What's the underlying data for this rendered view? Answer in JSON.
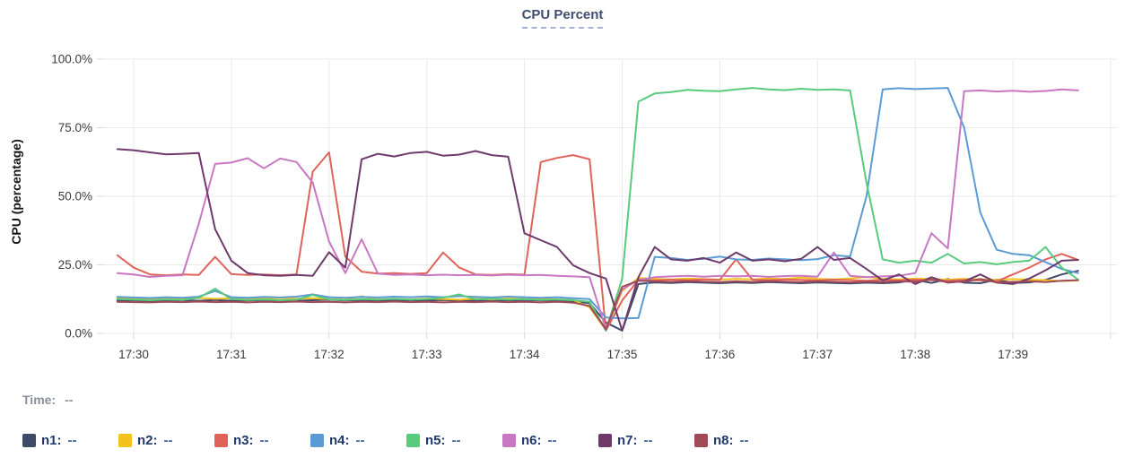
{
  "tooltip": {
    "time_label": "Time:",
    "time_value": "--"
  },
  "legend": {
    "items": [
      {
        "label": "n1:",
        "value": "--"
      },
      {
        "label": "n2:",
        "value": "--"
      },
      {
        "label": "n3:",
        "value": "--"
      },
      {
        "label": "n4:",
        "value": "--"
      },
      {
        "label": "n5:",
        "value": "--"
      },
      {
        "label": "n6:",
        "value": "--"
      },
      {
        "label": "n7:",
        "value": "--"
      },
      {
        "label": "n8:",
        "value": "--"
      }
    ]
  },
  "chart_data": {
    "type": "line",
    "title": "CPU Percent",
    "ylabel": "CPU (percentage)",
    "ylim": [
      0,
      100
    ],
    "grid": true,
    "legend_position": "bottom",
    "x_unit": "seconds_after_17:30:00",
    "x": [
      -10,
      0,
      10,
      20,
      30,
      40,
      50,
      60,
      70,
      80,
      90,
      100,
      110,
      120,
      130,
      140,
      150,
      160,
      170,
      180,
      190,
      200,
      210,
      220,
      230,
      240,
      250,
      260,
      270,
      280,
      290,
      300,
      310,
      320,
      330,
      340,
      350,
      360,
      370,
      380,
      390,
      400,
      410,
      420,
      430,
      440,
      450,
      460,
      470,
      480,
      490,
      500,
      510,
      520,
      530,
      540,
      550,
      560,
      570,
      580
    ],
    "xticks": [
      {
        "t": 0,
        "label": "17:30"
      },
      {
        "t": 60,
        "label": "17:31"
      },
      {
        "t": 120,
        "label": "17:32"
      },
      {
        "t": 180,
        "label": "17:33"
      },
      {
        "t": 240,
        "label": "17:34"
      },
      {
        "t": 300,
        "label": "17:35"
      },
      {
        "t": 360,
        "label": "17:36"
      },
      {
        "t": 420,
        "label": "17:37"
      },
      {
        "t": 480,
        "label": "17:38"
      },
      {
        "t": 540,
        "label": "17:39"
      },
      {
        "t": 600,
        "label": ""
      }
    ],
    "yticks": [
      {
        "v": 0,
        "label": "0.0%"
      },
      {
        "v": 25,
        "label": "25.0%"
      },
      {
        "v": 50,
        "label": "50.0%"
      },
      {
        "v": 75,
        "label": "75.0%"
      },
      {
        "v": 100,
        "label": "100.0%"
      }
    ],
    "series": [
      {
        "name": "n1",
        "color": "#3e4a68",
        "values": [
          12.0,
          12.0,
          11.8,
          12.0,
          12.1,
          11.9,
          12.2,
          11.9,
          12.0,
          12.2,
          12.0,
          11.9,
          12.1,
          12.3,
          12.0,
          12.2,
          12.0,
          11.9,
          12.1,
          12.0,
          12.2,
          12.0,
          11.9,
          12.1,
          12.0,
          12.2,
          12.0,
          11.9,
          11.7,
          11.0,
          4.0,
          1.0,
          18.0,
          18.6,
          18.4,
          18.7,
          18.5,
          18.3,
          18.6,
          18.4,
          18.7,
          18.5,
          18.3,
          18.6,
          18.4,
          18.2,
          18.5,
          18.3,
          18.6,
          19.5,
          18.4,
          19.8,
          18.5,
          18.3,
          19.6,
          18.4,
          18.6,
          19.5,
          21.5,
          22.8
        ]
      },
      {
        "name": "n2",
        "color": "#f3c21d",
        "values": [
          13.0,
          12.8,
          12.6,
          12.8,
          12.7,
          12.9,
          12.6,
          12.8,
          12.5,
          12.7,
          12.9,
          12.6,
          12.8,
          12.5,
          12.3,
          13.5,
          12.4,
          12.6,
          12.4,
          12.7,
          12.5,
          12.3,
          12.6,
          12.4,
          12.7,
          12.5,
          12.6,
          12.4,
          12.2,
          9.5,
          1.2,
          15.5,
          20.2,
          19.9,
          19.7,
          20.0,
          19.8,
          19.6,
          19.9,
          19.7,
          20.0,
          19.8,
          20.4,
          19.9,
          19.7,
          20.0,
          20.6,
          19.9,
          19.7,
          20.0,
          19.8,
          19.6,
          19.9,
          19.7,
          19.5,
          19.8,
          19.6,
          19.4,
          19.1,
          19.3
        ]
      },
      {
        "name": "n3",
        "color": "#e0635a",
        "values": [
          28.5,
          24.0,
          21.5,
          21.2,
          21.5,
          21.3,
          27.9,
          21.6,
          21.3,
          21.5,
          21.2,
          21.5,
          59.0,
          66.0,
          28.0,
          22.5,
          21.8,
          22.0,
          21.7,
          22.0,
          29.5,
          24.0,
          21.5,
          21.3,
          21.6,
          21.4,
          62.5,
          64.0,
          65.0,
          63.5,
          1.0,
          12.0,
          19.5,
          19.3,
          19.6,
          19.4,
          19.7,
          19.5,
          27.0,
          19.6,
          19.4,
          19.7,
          19.5,
          19.3,
          19.6,
          19.4,
          19.2,
          19.5,
          19.3,
          19.6,
          19.4,
          19.2,
          19.5,
          19.3,
          19.0,
          21.5,
          24.0,
          27.0,
          29.0,
          26.8
        ]
      },
      {
        "name": "n4",
        "color": "#5b9bd5",
        "values": [
          13.3,
          13.1,
          12.9,
          13.2,
          13.0,
          13.4,
          15.5,
          13.2,
          13.0,
          13.3,
          13.1,
          13.4,
          14.2,
          13.2,
          13.0,
          13.3,
          13.1,
          13.4,
          13.2,
          13.5,
          13.2,
          13.6,
          13.3,
          13.1,
          13.4,
          13.2,
          13.0,
          13.2,
          12.8,
          12.5,
          5.8,
          5.5,
          5.6,
          27.9,
          27.5,
          26.8,
          27.2,
          28.0,
          27.0,
          26.8,
          27.3,
          27.0,
          26.7,
          27.1,
          28.5,
          28.0,
          50.0,
          89.0,
          89.4,
          89.1,
          89.3,
          89.5,
          75.0,
          44.0,
          30.5,
          29.0,
          28.5,
          26.0,
          23.5,
          22.0
        ]
      },
      {
        "name": "n5",
        "color": "#58cb7d",
        "values": [
          12.5,
          12.3,
          12.1,
          12.4,
          12.2,
          13.0,
          16.3,
          12.5,
          12.2,
          12.4,
          12.1,
          12.3,
          14.0,
          12.4,
          12.2,
          12.5,
          12.3,
          12.6,
          12.3,
          12.5,
          13.0,
          14.2,
          12.4,
          12.6,
          12.3,
          12.5,
          12.2,
          12.4,
          12.1,
          11.5,
          1.0,
          20.0,
          84.5,
          87.5,
          88.0,
          88.8,
          88.5,
          88.3,
          89.0,
          89.5,
          89.0,
          88.7,
          89.2,
          88.8,
          89.0,
          88.6,
          55.0,
          27.0,
          25.8,
          26.5,
          25.8,
          29.0,
          25.5,
          26.0,
          25.2,
          26.0,
          26.5,
          31.5,
          24.0,
          19.6
        ]
      },
      {
        "name": "n6",
        "color": "#c878c2",
        "values": [
          22.0,
          21.5,
          20.6,
          21.0,
          21.2,
          40.0,
          61.8,
          62.3,
          63.9,
          60.2,
          63.8,
          62.5,
          55.0,
          33.5,
          22.0,
          34.3,
          21.8,
          21.3,
          21.5,
          21.2,
          21.4,
          21.2,
          21.3,
          21.1,
          21.4,
          21.2,
          21.3,
          21.0,
          20.8,
          20.5,
          1.5,
          16.0,
          19.5,
          20.5,
          20.8,
          21.0,
          20.7,
          21.0,
          20.8,
          21.0,
          20.6,
          20.9,
          21.0,
          20.7,
          29.5,
          21.0,
          20.5,
          20.8,
          21.0,
          22.0,
          36.5,
          31.0,
          88.3,
          88.6,
          88.2,
          88.5,
          88.1,
          88.4,
          89.0,
          88.6
        ]
      },
      {
        "name": "n7",
        "color": "#6e3a6c",
        "values": [
          67.2,
          66.8,
          66.0,
          65.3,
          65.5,
          65.8,
          38.0,
          26.5,
          22.0,
          21.2,
          21.0,
          21.3,
          21.0,
          29.6,
          24.0,
          63.5,
          65.5,
          64.5,
          65.8,
          66.2,
          64.8,
          65.2,
          66.5,
          65.0,
          64.4,
          36.5,
          34.0,
          31.5,
          24.8,
          22.0,
          20.0,
          1.0,
          20.5,
          31.5,
          27.0,
          26.5,
          27.5,
          25.8,
          29.5,
          26.5,
          27.0,
          26.3,
          27.2,
          31.5,
          26.8,
          27.5,
          23.5,
          19.3,
          21.5,
          18.0,
          20.5,
          18.5,
          19.0,
          21.5,
          18.5,
          18.0,
          20.0,
          23.0,
          26.5,
          26.8
        ]
      },
      {
        "name": "n8",
        "color": "#a04a58",
        "values": [
          11.5,
          11.4,
          11.3,
          11.5,
          11.4,
          11.6,
          11.4,
          11.5,
          11.3,
          11.5,
          11.4,
          11.6,
          11.4,
          11.5,
          11.3,
          11.5,
          11.4,
          11.6,
          11.4,
          11.5,
          11.3,
          11.5,
          11.4,
          11.6,
          11.4,
          11.5,
          11.3,
          11.5,
          11.2,
          10.0,
          1.5,
          17.0,
          19.2,
          19.0,
          18.8,
          19.1,
          18.9,
          18.7,
          19.0,
          18.8,
          19.1,
          18.9,
          18.7,
          19.0,
          18.8,
          18.6,
          18.9,
          18.7,
          19.0,
          18.8,
          19.6,
          18.7,
          18.9,
          19.8,
          18.6,
          18.8,
          19.0,
          18.7,
          19.2,
          19.4
        ]
      }
    ]
  }
}
